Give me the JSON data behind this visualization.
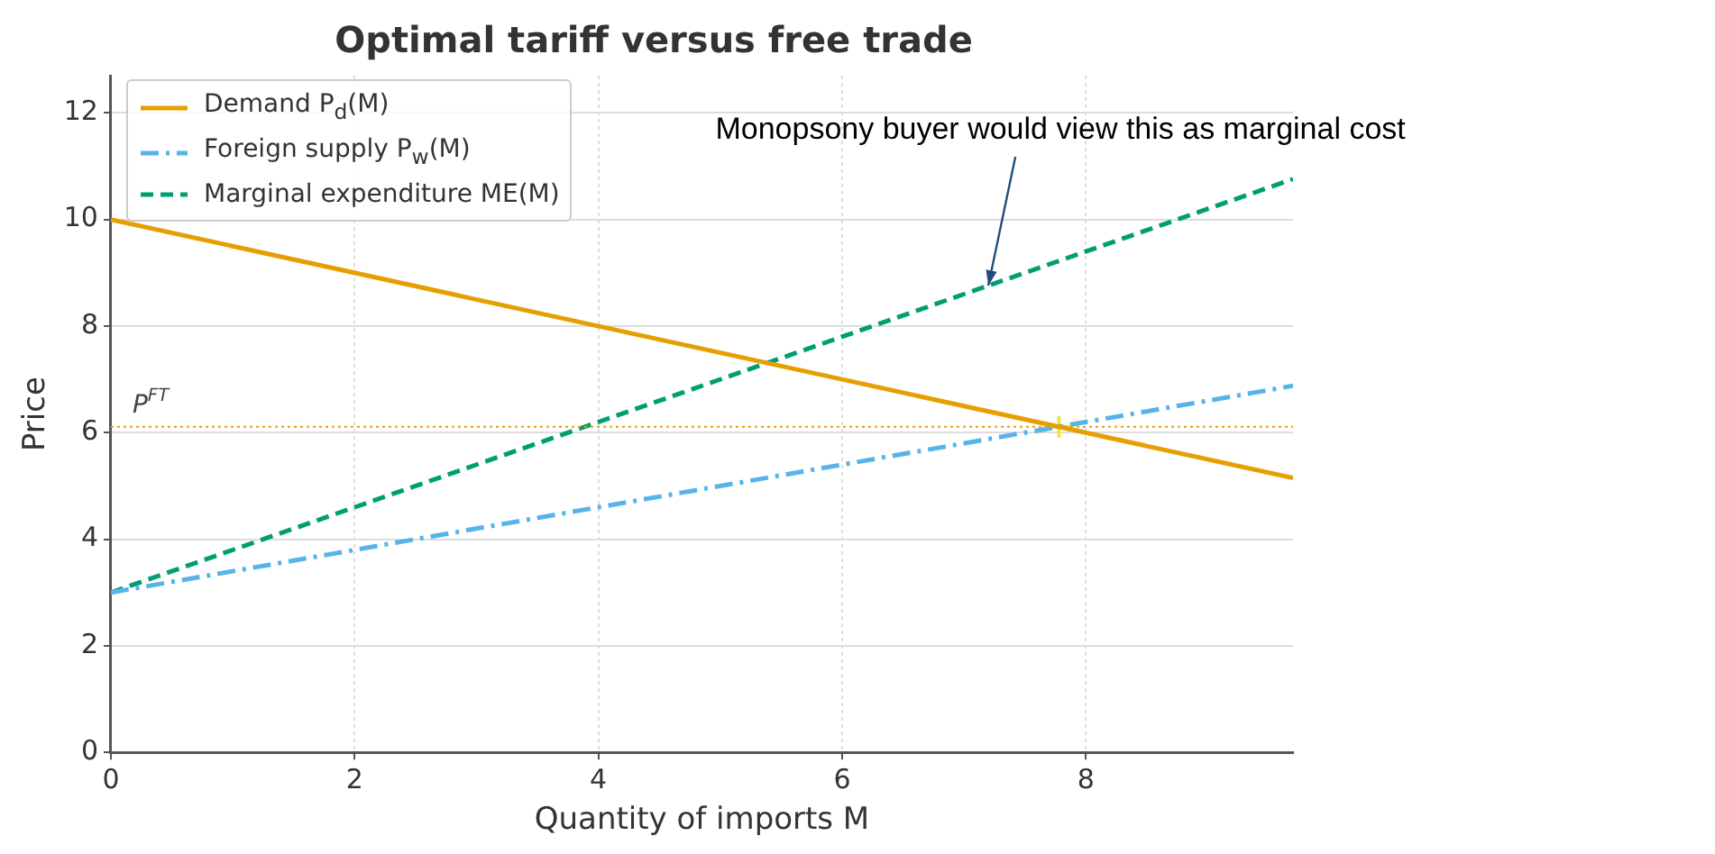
{
  "chart_data": {
    "type": "line",
    "title": "Optimal tariff versus free trade",
    "xlabel": "Quantity of imports M",
    "ylabel": "Price",
    "xlim": [
      0,
      9.7
    ],
    "ylim": [
      0,
      12.7
    ],
    "xticks": [
      0,
      2,
      4,
      6,
      8
    ],
    "yticks": [
      0,
      2,
      4,
      6,
      8,
      10,
      12
    ],
    "grid": true,
    "legend": "top left",
    "series": [
      {
        "name": "Demand P$_{d}$(M)",
        "color": "#e69f00",
        "x": [
          0,
          9.7
        ],
        "values": [
          10,
          5.15
        ],
        "line_style": "solid"
      },
      {
        "name": "Foreign supply P$_{w}$(M)",
        "color": "#56b4e9",
        "x": [
          0,
          9.7
        ],
        "values": [
          3,
          6.88
        ],
        "line_style": "dashdot"
      },
      {
        "name": "Marginal expenditure ME(M)",
        "color": "#009e73",
        "x": [
          0,
          9.7
        ],
        "values": [
          3,
          10.76
        ],
        "line_style": "dashed"
      },
      {
        "type": "scatter",
        "color": "#f0e442",
        "x": [
          7.78
        ],
        "values": [
          6.11
        ],
        "marker": "cross"
      }
    ],
    "ref_lines": [
      {
        "axis": "y",
        "value": 6.11,
        "label": "P$^{FT}$",
        "color": "#e69f00",
        "line_style": "dotted"
      }
    ],
    "annotations": [
      {
        "text": "Monopsony buyer would view this as marginal cost",
        "x": 7.2,
        "y": 8.76
      }
    ]
  }
}
